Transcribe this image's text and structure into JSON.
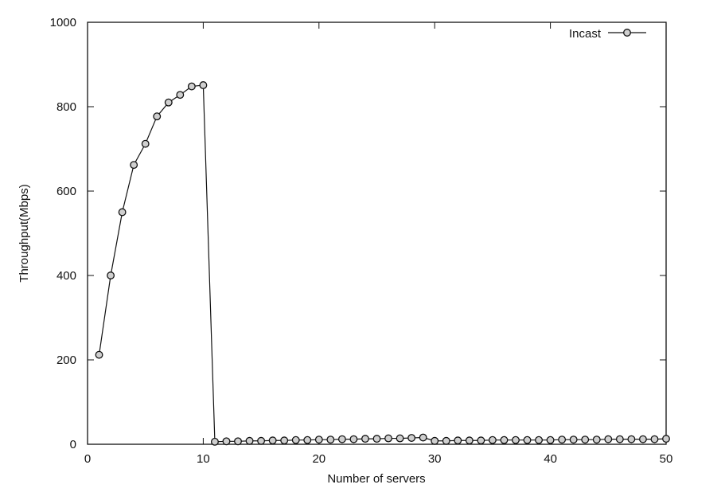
{
  "chart_data": {
    "type": "line",
    "title": "",
    "xlabel": "Number of servers",
    "ylabel": "Throughput(Mbps)",
    "xlim": [
      0,
      50
    ],
    "ylim": [
      0,
      1000
    ],
    "xticks": [
      0,
      10,
      20,
      30,
      40,
      50
    ],
    "yticks": [
      0,
      200,
      400,
      600,
      800,
      1000
    ],
    "grid": false,
    "legend_position": "top-right",
    "line_color": "#111111",
    "series": [
      {
        "name": "Incast",
        "x": [
          1,
          2,
          3,
          4,
          5,
          6,
          7,
          8,
          9,
          10,
          11,
          12,
          13,
          14,
          15,
          16,
          17,
          18,
          19,
          20,
          21,
          22,
          23,
          24,
          25,
          26,
          27,
          28,
          29,
          30,
          31,
          32,
          33,
          34,
          35,
          36,
          37,
          38,
          39,
          40,
          41,
          42,
          43,
          44,
          45,
          46,
          47,
          48,
          49,
          50
        ],
        "y": [
          212,
          400,
          550,
          662,
          712,
          777,
          810,
          828,
          848,
          851,
          6,
          7,
          7,
          8,
          8,
          9,
          9,
          10,
          10,
          11,
          11,
          12,
          12,
          13,
          13,
          14,
          14,
          15,
          16,
          8,
          8,
          9,
          9,
          9,
          10,
          10,
          10,
          10,
          10,
          10,
          11,
          11,
          11,
          11,
          12,
          12,
          12,
          12,
          12,
          13
        ]
      }
    ]
  }
}
